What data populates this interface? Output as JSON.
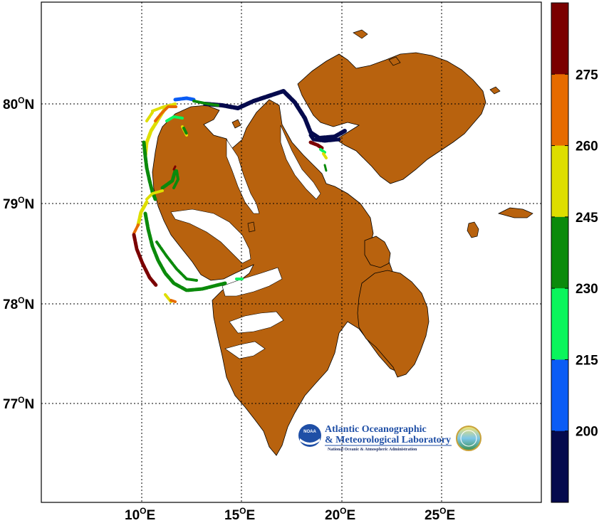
{
  "map": {
    "lat_labels": [
      "80",
      "79",
      "78",
      "77"
    ],
    "lon_labels": [
      "10",
      "15",
      "20",
      "25"
    ],
    "lat_suffix": "N",
    "lon_suffix": "E",
    "degree_sign": "O",
    "land_color": "#b8620e",
    "grid": true
  },
  "colorbar": {
    "ticks": [
      "200",
      "215",
      "230",
      "245",
      "260",
      "275"
    ],
    "segments": [
      "#050a4d",
      "#0a5cf5",
      "#0af55c",
      "#0b8a0b",
      "#dede00",
      "#e66b00",
      "#7a0000"
    ]
  },
  "logo": {
    "line1": "Atlantic Oceanographic",
    "line2": "& Meteorological Laboratory",
    "line3": "National Oceanic & Atmospheric Administration",
    "badge": "NOAA"
  }
}
